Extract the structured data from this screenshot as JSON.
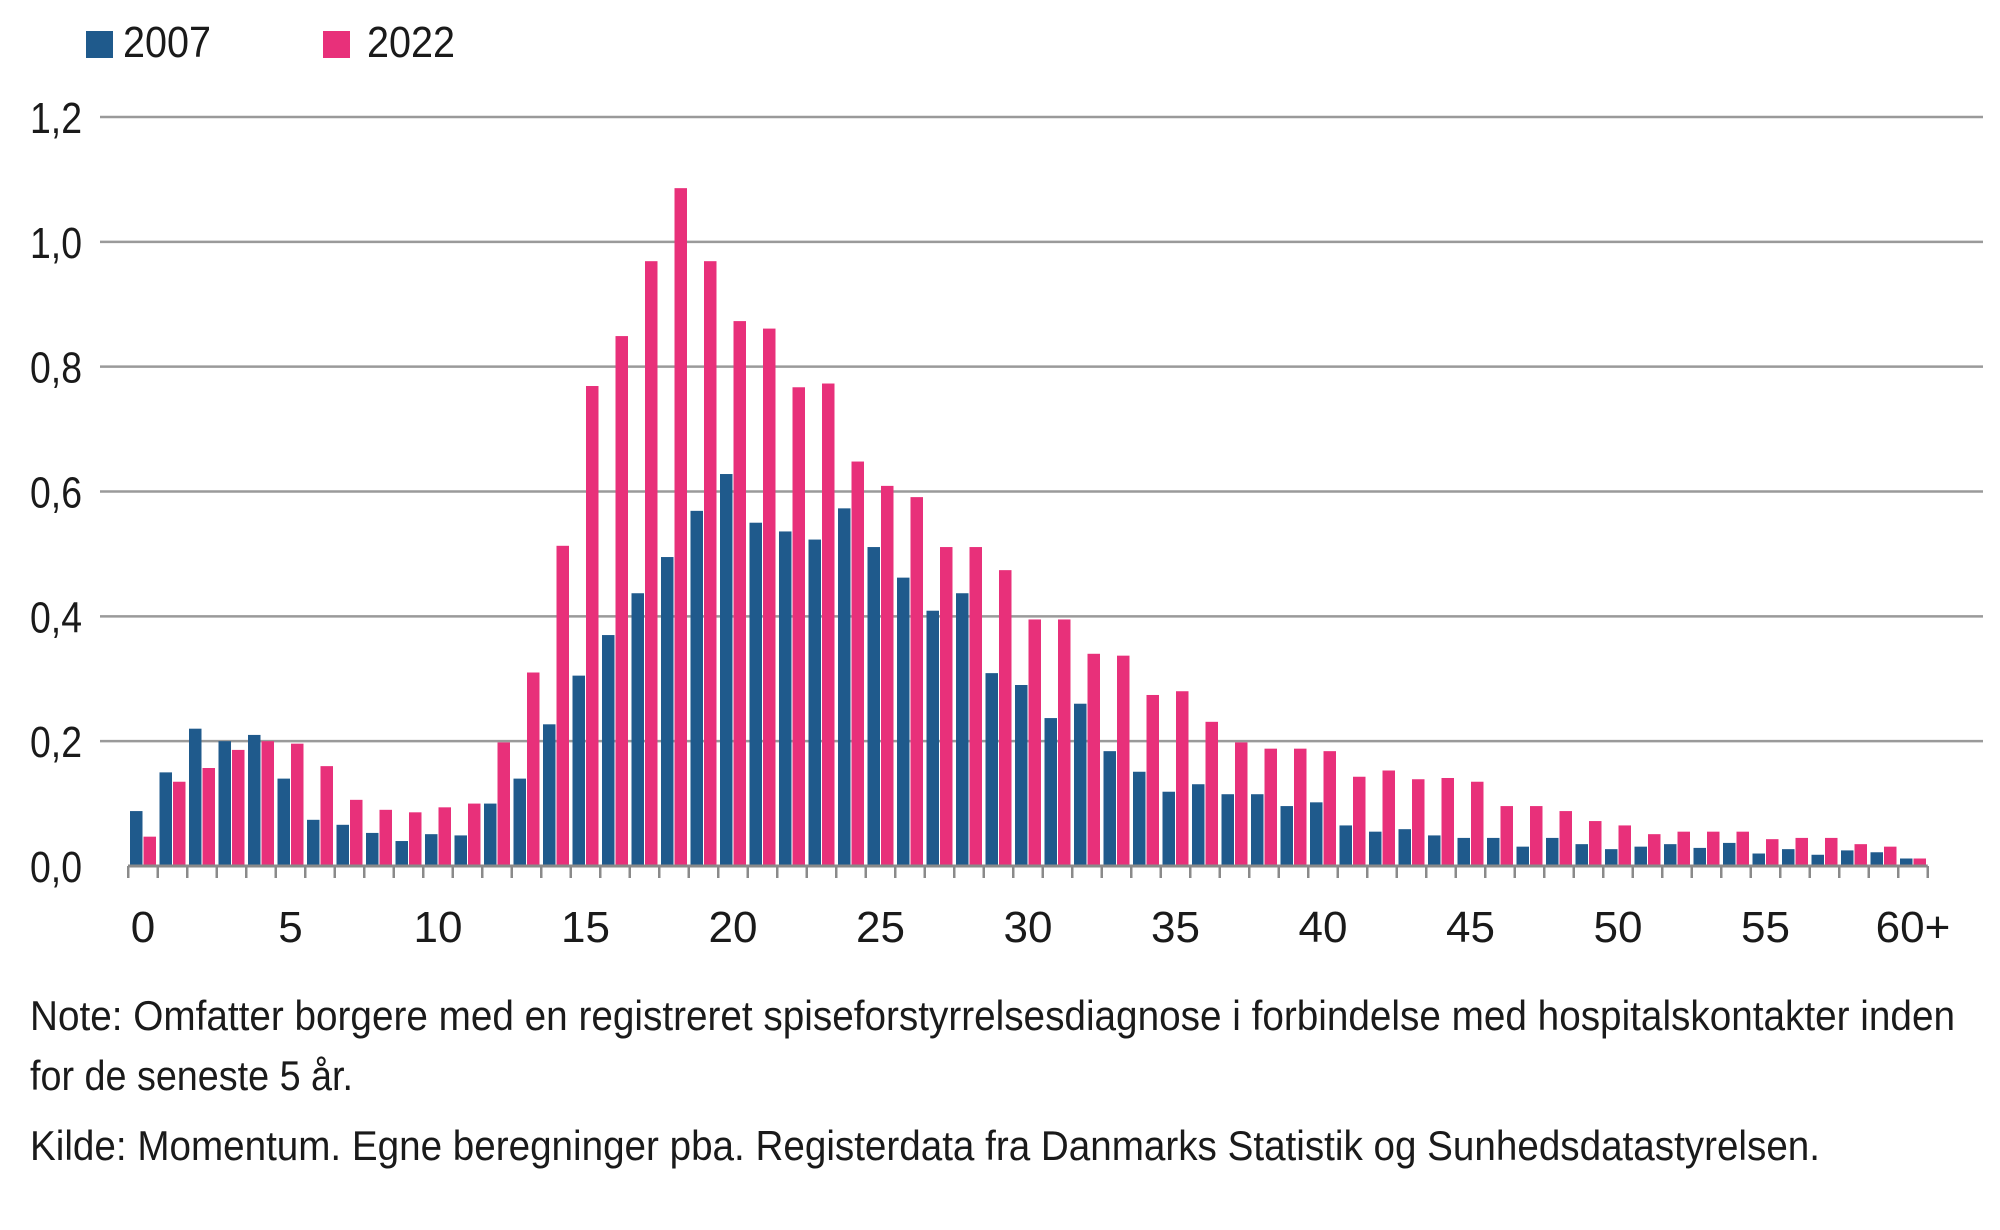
{
  "chart_data": {
    "type": "bar",
    "title": "",
    "xlabel": "",
    "ylabel": "",
    "ylim": [
      0,
      1.2
    ],
    "yticks": [
      "0,0",
      "0,2",
      "0,4",
      "0,6",
      "0,8",
      "1,0",
      "1,2"
    ],
    "xtick_labels": [
      "0",
      "5",
      "10",
      "15",
      "20",
      "25",
      "30",
      "35",
      "40",
      "45",
      "50",
      "55",
      "60+"
    ],
    "grid": true,
    "legend_position": "top-left",
    "categories": [
      "0",
      "1",
      "2",
      "3",
      "4",
      "5",
      "6",
      "7",
      "8",
      "9",
      "10",
      "11",
      "12",
      "13",
      "14",
      "15",
      "16",
      "17",
      "18",
      "19",
      "20",
      "21",
      "22",
      "23",
      "24",
      "25",
      "26",
      "27",
      "28",
      "29",
      "30",
      "31",
      "32",
      "33",
      "34",
      "35",
      "36",
      "37",
      "38",
      "39",
      "40",
      "41",
      "42",
      "43",
      "44",
      "45",
      "46",
      "47",
      "48",
      "49",
      "50",
      "51",
      "52",
      "53",
      "54",
      "55",
      "56",
      "57",
      "58",
      "59",
      "60+"
    ],
    "series": [
      {
        "name": "2007",
        "color": "#1f5a8c",
        "values": [
          0.088,
          0.15,
          0.22,
          0.2,
          0.21,
          0.14,
          0.074,
          0.066,
          0.053,
          0.04,
          0.051,
          0.049,
          0.1,
          0.14,
          0.227,
          0.305,
          0.37,
          0.437,
          0.495,
          0.569,
          0.628,
          0.55,
          0.536,
          0.523,
          0.573,
          0.511,
          0.462,
          0.409,
          0.437,
          0.309,
          0.29,
          0.237,
          0.26,
          0.184,
          0.151,
          0.119,
          0.131,
          0.115,
          0.115,
          0.096,
          0.102,
          0.065,
          0.055,
          0.059,
          0.049,
          0.045,
          0.045,
          0.031,
          0.045,
          0.035,
          0.027,
          0.031,
          0.035,
          0.029,
          0.037,
          0.02,
          0.027,
          0.018,
          0.025,
          0.022,
          0.012
        ]
      },
      {
        "name": "2022",
        "color": "#e8307a",
        "values": [
          0.047,
          0.135,
          0.157,
          0.186,
          0.2,
          0.196,
          0.16,
          0.106,
          0.09,
          0.086,
          0.094,
          0.1,
          0.198,
          0.31,
          0.513,
          0.769,
          0.849,
          0.969,
          1.086,
          0.969,
          0.873,
          0.861,
          0.767,
          0.773,
          0.648,
          0.609,
          0.591,
          0.511,
          0.511,
          0.474,
          0.395,
          0.395,
          0.34,
          0.337,
          0.274,
          0.28,
          0.231,
          0.198,
          0.188,
          0.188,
          0.184,
          0.143,
          0.153,
          0.139,
          0.141,
          0.135,
          0.096,
          0.096,
          0.088,
          0.072,
          0.065,
          0.051,
          0.055,
          0.055,
          0.055,
          0.043,
          0.045,
          0.045,
          0.035,
          0.031,
          0.012
        ]
      }
    ]
  },
  "notes": {
    "note_line1": "Note: Omfatter borgere med en registreret spiseforstyrrelsesdiagnose i forbindelse med hospitalskontakter inden",
    "note_line2": "for de seneste 5 år.",
    "source": "Kilde: Momentum. Egne beregninger pba. Registerdata fra Danmarks Statistik og Sunhedsdatastyrelsen."
  }
}
